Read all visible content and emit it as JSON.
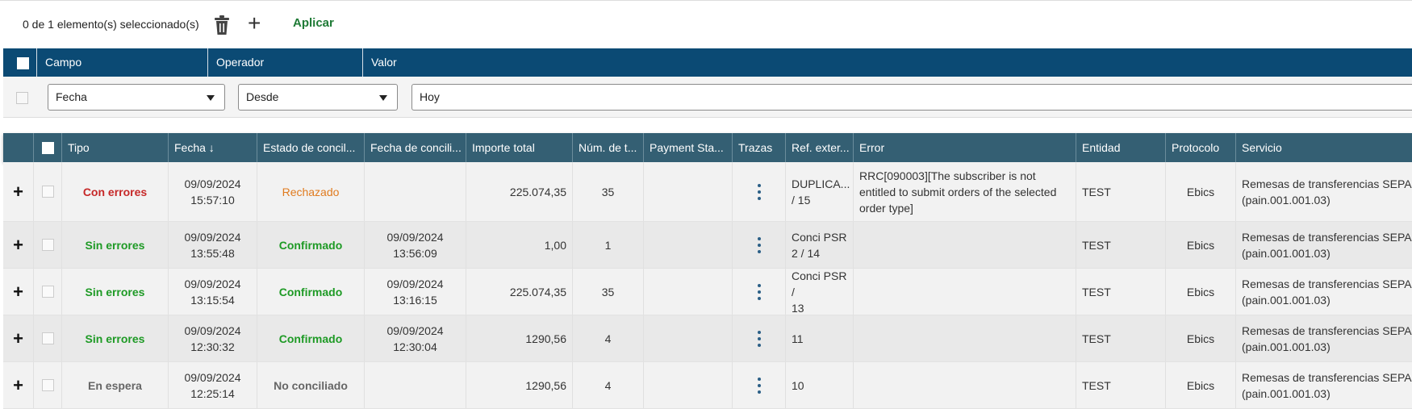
{
  "toolbar": {
    "selection_count": "0  de 1 elemento(s) seleccionado(s)",
    "apply_label": "Aplicar",
    "add_symbol": "+"
  },
  "filter": {
    "headers": {
      "field": "Campo",
      "operator": "Operador",
      "value": "Valor"
    },
    "field_value": "Fecha",
    "operator_value": "Desde",
    "value_value": "Hoy"
  },
  "table": {
    "columns": [
      "Tipo",
      "Fecha ↓",
      "Estado de concil...",
      "Fecha de concili...",
      "Importe total",
      "Núm. de t...",
      "Payment Sta...",
      "Trazas",
      "Ref. exter...",
      "Error",
      "Entidad",
      "Protocolo",
      "Servicio"
    ],
    "rows": [
      {
        "expand": "+",
        "tipo": "Con errores",
        "tipo_status": "red",
        "fecha": "09/09/2024\n15:57:10",
        "estado": "Rechazado",
        "estado_status": "orange",
        "fecha_conc": "",
        "importe": "225.074,35",
        "num": "35",
        "payment": "",
        "ref": "DUPLICA...\n/ 15",
        "error": "RRC[090003][The subscriber is not entitled to submit orders of the selected order type]",
        "entidad": "TEST",
        "protocolo": "Ebics",
        "servicio": "Remesas de transferencias SEPA\n(pain.001.001.03)"
      },
      {
        "expand": "+",
        "tipo": "Sin errores",
        "tipo_status": "green",
        "fecha": "09/09/2024\n13:55:48",
        "estado": "Confirmado",
        "estado_status": "green",
        "fecha_conc": "09/09/2024\n13:56:09",
        "importe": "1,00",
        "num": "1",
        "payment": "",
        "ref": "Conci PSR\n2 / 14",
        "error": "",
        "entidad": "TEST",
        "protocolo": "Ebics",
        "servicio": "Remesas de transferencias SEPA\n(pain.001.001.03)"
      },
      {
        "expand": "+",
        "tipo": "Sin errores",
        "tipo_status": "green",
        "fecha": "09/09/2024\n13:15:54",
        "estado": "Confirmado",
        "estado_status": "green",
        "fecha_conc": "09/09/2024\n13:16:15",
        "importe": "225.074,35",
        "num": "35",
        "payment": "",
        "ref": "Conci PSR /\n13",
        "error": "",
        "entidad": "TEST",
        "protocolo": "Ebics",
        "servicio": "Remesas de transferencias SEPA\n(pain.001.001.03)"
      },
      {
        "expand": "+",
        "tipo": "Sin errores",
        "tipo_status": "green",
        "fecha": "09/09/2024\n12:30:32",
        "estado": "Confirmado",
        "estado_status": "green",
        "fecha_conc": "09/09/2024\n12:30:04",
        "importe": "1290,56",
        "num": "4",
        "payment": "",
        "ref": "11",
        "error": "",
        "entidad": "TEST",
        "protocolo": "Ebics",
        "servicio": "Remesas de transferencias SEPA\n(pain.001.001.03)"
      },
      {
        "expand": "+",
        "tipo": "En espera",
        "tipo_status": "gray",
        "fecha": "09/09/2024\n12:25:14",
        "estado": "No conciliado",
        "estado_status": "gray",
        "fecha_conc": "",
        "importe": "1290,56",
        "num": "4",
        "payment": "",
        "ref": "10",
        "error": "",
        "entidad": "TEST",
        "protocolo": "Ebics",
        "servicio": "Remesas de transferencias SEPA\n(pain.001.001.03)"
      }
    ]
  },
  "colors": {
    "header_blue": "#0b4a74",
    "table_header": "#345f73",
    "apply_green": "#1e7a35",
    "status_red": "#c62828",
    "status_green": "#1e9a25",
    "status_orange": "#e07b1f",
    "status_gray": "#666666"
  }
}
